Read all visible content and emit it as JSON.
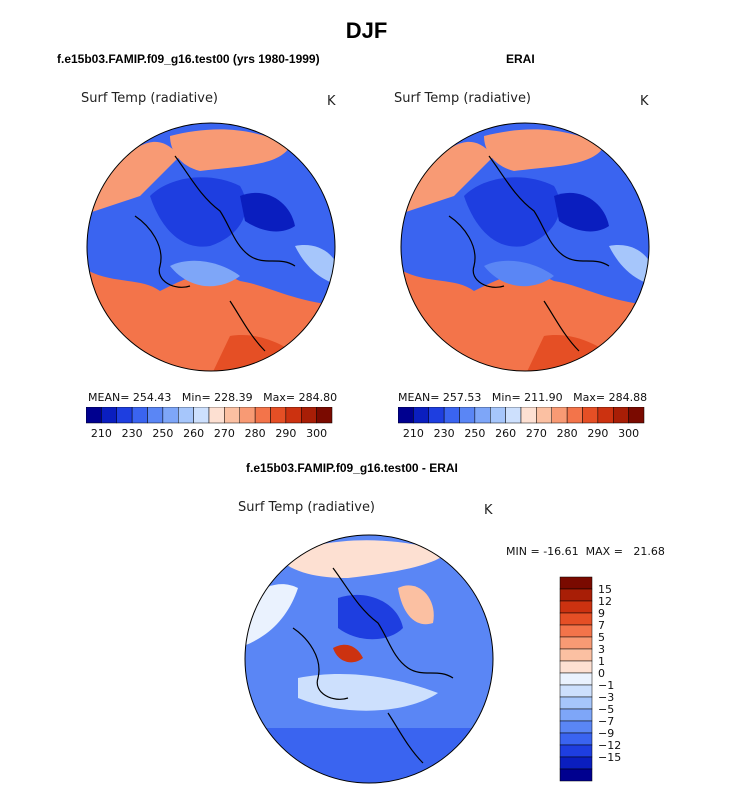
{
  "title": "DJF",
  "colors": {
    "abs_scale": [
      "#00008f",
      "#0a1ebf",
      "#1e3ee0",
      "#3a64f0",
      "#5a86f5",
      "#7ea6f8",
      "#a6c6fb",
      "#cde0fd",
      "#fde0d2",
      "#fbc0a2",
      "#f89a74",
      "#f3744a",
      "#e54f25",
      "#cc3210",
      "#a81e06",
      "#7a0a00"
    ],
    "diff_scale": [
      "#00008f",
      "#0a1ebf",
      "#1e3ee0",
      "#3a64f0",
      "#5a86f5",
      "#7ea6f8",
      "#a6c6fb",
      "#cde0fd",
      "#eaf2fe",
      "#fde0d2",
      "#fbc0a2",
      "#f89a74",
      "#f3744a",
      "#e54f25",
      "#cc3210",
      "#a81e06",
      "#7a0a00"
    ],
    "coast": "#000000"
  },
  "chart_data": [
    {
      "type": "heatmap",
      "title": "f.e15b03.FAMIP.f09_g16.test00 (yrs 1980-1999)",
      "field": "Surf Temp (radiative)",
      "units": "K",
      "projection": "north polar stereographic",
      "stats": {
        "mean_label": "MEAN=",
        "mean": "254.43",
        "min_label": "Min=",
        "min": "228.39",
        "max_label": "Max=",
        "max": "284.80"
      },
      "colorbar_ticks": [
        "210",
        "230",
        "250",
        "260",
        "270",
        "280",
        "290",
        "300"
      ],
      "levels": [
        210,
        220,
        230,
        240,
        245,
        250,
        255,
        260,
        265,
        270,
        275,
        280,
        285,
        290,
        295,
        300
      ]
    },
    {
      "type": "heatmap",
      "title": "ERAI",
      "field": "Surf Temp (radiative)",
      "units": "K",
      "projection": "north polar stereographic",
      "stats": {
        "mean_label": "MEAN=",
        "mean": "257.53",
        "min_label": "Min=",
        "min": "211.90",
        "max_label": "Max=",
        "max": "284.88"
      },
      "colorbar_ticks": [
        "210",
        "230",
        "250",
        "260",
        "270",
        "280",
        "290",
        "300"
      ],
      "levels": [
        210,
        220,
        230,
        240,
        245,
        250,
        255,
        260,
        265,
        270,
        275,
        280,
        285,
        290,
        295,
        300
      ]
    },
    {
      "type": "heatmap",
      "title": "f.e15b03.FAMIP.f09_g16.test00 - ERAI",
      "field": "Surf Temp (radiative)",
      "units": "K",
      "projection": "north polar stereographic",
      "stats": {
        "min_label": "MIN =",
        "min": "-16.61",
        "max_label": "MAX =",
        "max": "21.68"
      },
      "colorbar_ticks": [
        "15",
        "12",
        "9",
        "7",
        "5",
        "3",
        "1",
        "0",
        "−1",
        "−3",
        "−5",
        "−7",
        "−9",
        "−12",
        "−15"
      ],
      "levels": [
        -15,
        -12,
        -9,
        -7,
        -5,
        -3,
        -1,
        0,
        1,
        3,
        5,
        7,
        9,
        12,
        15
      ]
    }
  ]
}
